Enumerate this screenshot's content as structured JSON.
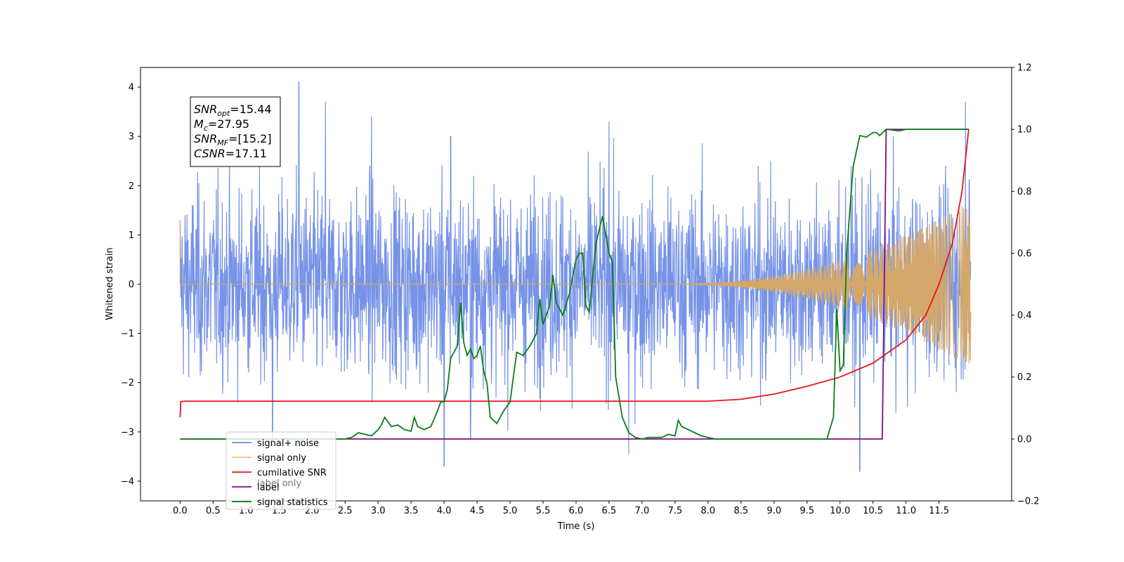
{
  "chart_data": {
    "type": "line",
    "xlabel": "Time (s)",
    "ylabel": "Whitened strain",
    "xlim": [
      -0.6,
      12.6
    ],
    "ylim": [
      -4.4,
      4.4
    ],
    "ylim_right": [
      -0.2,
      1.2
    ],
    "xticks": [
      0.0,
      0.5,
      1.0,
      1.5,
      2.0,
      2.5,
      3.0,
      3.5,
      4.0,
      4.5,
      5.0,
      5.5,
      6.0,
      6.5,
      7.0,
      7.5,
      8.0,
      8.5,
      9.0,
      9.5,
      10.0,
      10.5,
      11.0,
      11.5
    ],
    "xtick_labels": [
      "0.0",
      "0.5",
      "1.0",
      "1.5",
      "2.0",
      "2.5",
      "3.0",
      "3.5",
      "4.0",
      "4.5",
      "5.0",
      "5.5",
      "6.0",
      "6.5",
      "7.0",
      "7.5",
      "8.0",
      "8.5",
      "9.0",
      "9.5",
      "10.0",
      "10.5",
      "11.0",
      "11.5"
    ],
    "yticks_left": [
      -4,
      -3,
      -2,
      -1,
      0,
      1,
      2,
      3,
      4
    ],
    "ytick_labels_left": [
      "−4",
      "−3",
      "−2",
      "−1",
      "0",
      "1",
      "2",
      "3",
      "4"
    ],
    "yticks_right": [
      -0.2,
      0.0,
      0.2,
      0.4,
      0.6,
      0.8,
      1.0,
      1.2
    ],
    "ytick_labels_right": [
      "−0.2",
      "0.0",
      "0.2",
      "0.4",
      "0.6",
      "0.8",
      "1.0",
      "1.2"
    ],
    "annotation": [
      {
        "main": "SNR",
        "sub": "opt",
        "rest": "=15.44"
      },
      {
        "main": "M",
        "sub": "c",
        "rest": "=27.95"
      },
      {
        "main": "SNR",
        "sub": "MF",
        "rest": "=[15.2]"
      },
      {
        "main": "CSNR",
        "sub": "",
        "rest": "=17.11"
      }
    ],
    "legend_position": "lower-left",
    "series": [
      {
        "name": "signal+ noise",
        "axis": "left",
        "color": "#6f8de6",
        "description_only": false,
        "x_range": [
          0.0,
          11.98
        ],
        "amplitude_envelope": 2.3,
        "spike_peaks": [
          {
            "x": 1.8,
            "y": 4.1
          },
          {
            "x": 2.2,
            "y": 3.7
          },
          {
            "x": 2.9,
            "y": 3.4
          },
          {
            "x": 4.1,
            "y": 3.0
          },
          {
            "x": 6.5,
            "y": 3.3
          },
          {
            "x": 10.3,
            "y": -3.8
          },
          {
            "x": 4.0,
            "y": -3.7
          },
          {
            "x": 11.9,
            "y": 3.7
          },
          {
            "x": 6.8,
            "y": -3.45
          },
          {
            "x": 1.4,
            "y": -3.3
          },
          {
            "x": 4.4,
            "y": -3.15
          }
        ]
      },
      {
        "name": "signal only",
        "axis": "left",
        "color": "#d4a86a",
        "x_start": 0.0,
        "chirp_onset": 7.5,
        "x_end": 11.98,
        "final_amplitude": 1.6
      },
      {
        "name": "cumilative SNR",
        "axis": "right",
        "color": "#e8141c",
        "x": [
          0.0,
          0.01,
          0.05,
          8.0,
          8.5,
          9.0,
          9.5,
          10.0,
          10.5,
          11.0,
          11.3,
          11.5,
          11.7,
          11.85,
          11.95
        ],
        "y": [
          0.07,
          0.12,
          0.122,
          0.122,
          0.128,
          0.145,
          0.17,
          0.2,
          0.245,
          0.32,
          0.4,
          0.5,
          0.63,
          0.8,
          1.0
        ]
      },
      {
        "name": "label",
        "axis": "right",
        "color": "#7a0f84",
        "x": [
          0.0,
          10.64,
          10.7,
          11.95
        ],
        "y": [
          0.0,
          0.0,
          1.0,
          1.0
        ]
      },
      {
        "name": "signal statistics",
        "axis": "right",
        "color": "#0b7d15",
        "x": [
          0.0,
          0.1,
          0.3,
          0.5,
          0.8,
          1.0,
          1.5,
          2.0,
          2.5,
          2.6,
          2.7,
          2.8,
          2.9,
          3.0,
          3.05,
          3.1,
          3.2,
          3.3,
          3.4,
          3.5,
          3.55,
          3.6,
          3.7,
          3.8,
          3.9,
          3.95,
          4.0,
          4.05,
          4.1,
          4.2,
          4.25,
          4.3,
          4.35,
          4.4,
          4.45,
          4.5,
          4.55,
          4.6,
          4.65,
          4.7,
          4.8,
          4.9,
          5.0,
          5.1,
          5.2,
          5.3,
          5.4,
          5.45,
          5.5,
          5.6,
          5.65,
          5.7,
          5.8,
          5.9,
          6.0,
          6.05,
          6.1,
          6.15,
          6.2,
          6.3,
          6.4,
          6.5,
          6.55,
          6.6,
          6.7,
          6.8,
          6.9,
          7.0,
          7.1,
          7.2,
          7.3,
          7.4,
          7.5,
          7.55,
          7.6,
          7.7,
          7.8,
          7.9,
          8.0,
          8.1,
          8.2,
          8.5,
          8.8,
          9.0,
          9.5,
          9.7,
          9.8,
          9.9,
          9.95,
          10.0,
          10.05,
          10.1,
          10.2,
          10.3,
          10.4,
          10.5,
          10.55,
          10.6,
          10.7,
          10.9,
          11.0,
          11.5,
          11.95
        ],
        "y": [
          0.0,
          0.0,
          0.0,
          0.0,
          0.0,
          0.0,
          0.0,
          0.0,
          0.0,
          0.005,
          0.02,
          0.015,
          0.01,
          0.03,
          0.045,
          0.07,
          0.04,
          0.045,
          0.03,
          0.025,
          0.07,
          0.04,
          0.03,
          0.04,
          0.09,
          0.12,
          0.12,
          0.16,
          0.26,
          0.3,
          0.44,
          0.31,
          0.27,
          0.29,
          0.26,
          0.27,
          0.3,
          0.22,
          0.18,
          0.07,
          0.05,
          0.09,
          0.12,
          0.28,
          0.27,
          0.3,
          0.34,
          0.45,
          0.37,
          0.43,
          0.53,
          0.44,
          0.4,
          0.47,
          0.58,
          0.6,
          0.6,
          0.43,
          0.41,
          0.63,
          0.72,
          0.6,
          0.57,
          0.2,
          0.07,
          0.02,
          0.005,
          0.0,
          0.005,
          0.005,
          0.005,
          0.015,
          0.01,
          0.06,
          0.04,
          0.03,
          0.02,
          0.01,
          0.005,
          0.0,
          0.0,
          0.0,
          0.0,
          0.0,
          0.0,
          0.0,
          0.0,
          0.07,
          0.42,
          0.22,
          0.24,
          0.6,
          0.88,
          0.98,
          0.975,
          0.99,
          0.99,
          0.98,
          1.0,
          0.995,
          1.0,
          1.0,
          1.0
        ]
      }
    ],
    "legend_entries": [
      {
        "label": "signal+ noise",
        "color": "#6f8de6"
      },
      {
        "label": "signal only",
        "color": "#f5c36e"
      },
      {
        "label": "cumilative SNR",
        "color": "#e8141c"
      },
      {
        "label": "label",
        "color": "#7a0f84"
      },
      {
        "label": "signal statistics",
        "color": "#0b7d15"
      }
    ],
    "hidden_legend_text": "label only"
  }
}
